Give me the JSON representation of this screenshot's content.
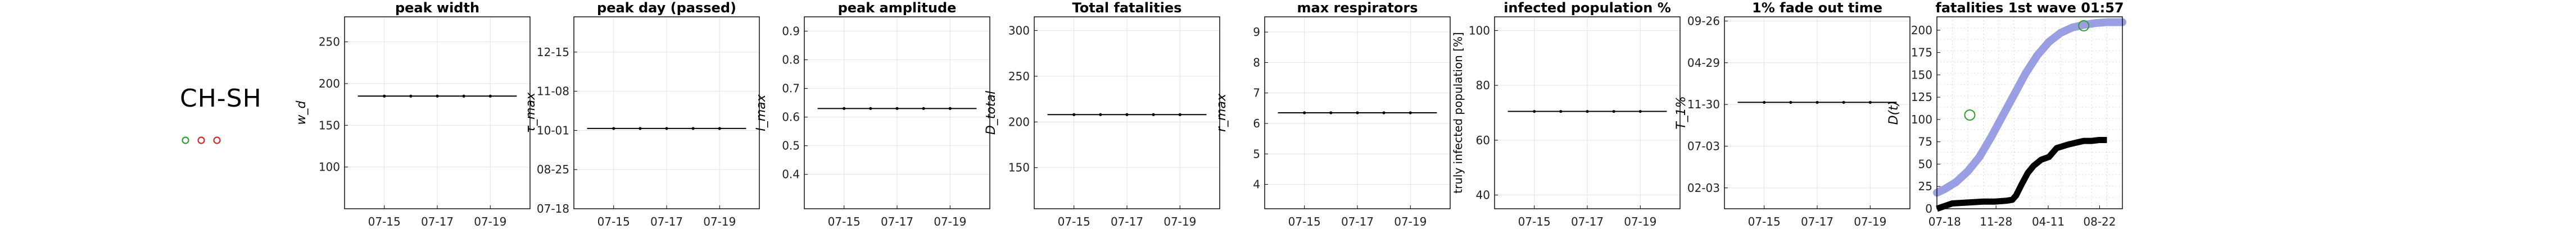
{
  "region": {
    "label": "CH-SH",
    "dots": [
      {
        "color": "#2ca02c"
      },
      {
        "color": "#d62728"
      },
      {
        "color": "#d62728"
      }
    ]
  },
  "chart_data": [
    {
      "type": "line",
      "title": "peak width",
      "ylabel": "w_d",
      "x": [
        "07-14",
        "07-15",
        "07-16",
        "07-17",
        "07-18",
        "07-19",
        "07-20"
      ],
      "xticks": [
        "07-15",
        "07-17",
        "07-19"
      ],
      "ylim": [
        50,
        280
      ],
      "yticks": [
        "100",
        "150",
        "200",
        "250"
      ],
      "series": [
        {
          "values": [
            185,
            185,
            185,
            185,
            185,
            185,
            185
          ]
        }
      ],
      "grid": true
    },
    {
      "type": "line",
      "title": "peak day (passed)",
      "ylabel": "τ_max",
      "x": [
        "07-14",
        "07-15",
        "07-16",
        "07-17",
        "07-18",
        "07-19",
        "07-20"
      ],
      "xticks": [
        "07-15",
        "07-17",
        "07-19"
      ],
      "ylim": [
        0,
        4.9
      ],
      "yticks": [
        "07-18",
        "08-25",
        "10-01",
        "11-08",
        "12-15"
      ],
      "ytick_values": [
        0,
        1,
        2,
        3,
        4
      ],
      "series": [
        {
          "values": [
            2.05,
            2.05,
            2.05,
            2.05,
            2.05,
            2.05,
            2.05
          ]
        }
      ],
      "grid": true
    },
    {
      "type": "line",
      "title": "peak amplitude",
      "ylabel": "I_max",
      "x": [
        "07-14",
        "07-15",
        "07-16",
        "07-17",
        "07-18",
        "07-19",
        "07-20"
      ],
      "xticks": [
        "07-15",
        "07-17",
        "07-19"
      ],
      "ylim": [
        0.28,
        0.95
      ],
      "yticks": [
        "0.4",
        "0.5",
        "0.6",
        "0.7",
        "0.8",
        "0.9"
      ],
      "series": [
        {
          "values": [
            0.63,
            0.63,
            0.63,
            0.63,
            0.63,
            0.63,
            0.63
          ]
        }
      ],
      "grid": true
    },
    {
      "type": "line",
      "title": "Total fatalities",
      "ylabel": "D_total",
      "x": [
        "07-14",
        "07-15",
        "07-16",
        "07-17",
        "07-18",
        "07-19",
        "07-20"
      ],
      "xticks": [
        "07-15",
        "07-17",
        "07-19"
      ],
      "ylim": [
        105,
        315
      ],
      "yticks": [
        "150",
        "200",
        "250",
        "300"
      ],
      "series": [
        {
          "values": [
            208,
            208,
            208,
            208,
            208,
            208,
            208
          ]
        }
      ],
      "grid": true
    },
    {
      "type": "line",
      "title": "max respirators",
      "ylabel": "r_max",
      "x": [
        "07-14",
        "07-15",
        "07-16",
        "07-17",
        "07-18",
        "07-19",
        "07-20"
      ],
      "xticks": [
        "07-15",
        "07-17",
        "07-19"
      ],
      "ylim": [
        3.2,
        9.5
      ],
      "yticks": [
        "4",
        "5",
        "6",
        "7",
        "8",
        "9"
      ],
      "series": [
        {
          "values": [
            6.35,
            6.35,
            6.35,
            6.35,
            6.35,
            6.35,
            6.35
          ]
        }
      ],
      "grid": true
    },
    {
      "type": "line",
      "title": "infected population %",
      "ylabel": "truly infected population [%]",
      "x": [
        "07-14",
        "07-15",
        "07-16",
        "07-17",
        "07-18",
        "07-19",
        "07-20"
      ],
      "xticks": [
        "07-15",
        "07-17",
        "07-19"
      ],
      "ylim": [
        35,
        105
      ],
      "yticks": [
        "40",
        "60",
        "80",
        "100"
      ],
      "series": [
        {
          "values": [
            70.5,
            70.5,
            70.5,
            70.5,
            70.5,
            70.5,
            70.5
          ]
        }
      ],
      "grid": true
    },
    {
      "type": "line",
      "title": "1% fade out time",
      "ylabel": "T_1%",
      "x": [
        "07-14",
        "07-15",
        "07-16",
        "07-17",
        "07-18",
        "07-19",
        "07-20"
      ],
      "xticks": [
        "07-15",
        "07-17",
        "07-19"
      ],
      "ylim": [
        -0.5,
        4.1
      ],
      "yticks": [
        "02-03",
        "07-03",
        "11-30",
        "04-29",
        "09-26"
      ],
      "ytick_values": [
        0,
        1,
        2,
        3,
        4
      ],
      "series": [
        {
          "values": [
            2.05,
            2.05,
            2.05,
            2.05,
            2.05,
            2.05,
            2.05
          ]
        }
      ],
      "grid": true
    },
    {
      "type": "line",
      "title": "fatalities 1st wave 01:57",
      "ylabel": "D(t)",
      "xticks": [
        "07-18",
        "11-28",
        "04-11",
        "08-22"
      ],
      "xtick_values": [
        0,
        133,
        268,
        401
      ],
      "xlim": [
        -20,
        460
      ],
      "ylim": [
        0,
        215
      ],
      "yticks": [
        "0",
        "25",
        "50",
        "75",
        "100",
        "125",
        "150",
        "175",
        "200"
      ],
      "grid": true,
      "series": [
        {
          "style": "model-band",
          "color": "#8f94e0",
          "x": [
            -20,
            0,
            30,
            60,
            90,
            120,
            150,
            180,
            210,
            240,
            270,
            300,
            330,
            360,
            390,
            420,
            460
          ],
          "values": [
            18,
            22,
            30,
            42,
            58,
            80,
            104,
            128,
            152,
            172,
            187,
            197,
            203,
            206,
            208,
            209,
            209
          ]
        },
        {
          "style": "observed",
          "color": "#000000",
          "x": [
            -20,
            20,
            60,
            100,
            130,
            160,
            175,
            185,
            200,
            215,
            230,
            250,
            270,
            290,
            320,
            340,
            360,
            380,
            400,
            420
          ],
          "values": [
            0,
            6,
            7,
            8,
            8,
            9,
            10,
            15,
            28,
            40,
            48,
            55,
            58,
            68,
            72,
            74,
            76,
            76,
            77,
            77
          ]
        },
        {
          "style": "markers",
          "color": "#2ca02c",
          "x": [
            65,
            360
          ],
          "values": [
            105,
            205
          ]
        }
      ]
    }
  ]
}
